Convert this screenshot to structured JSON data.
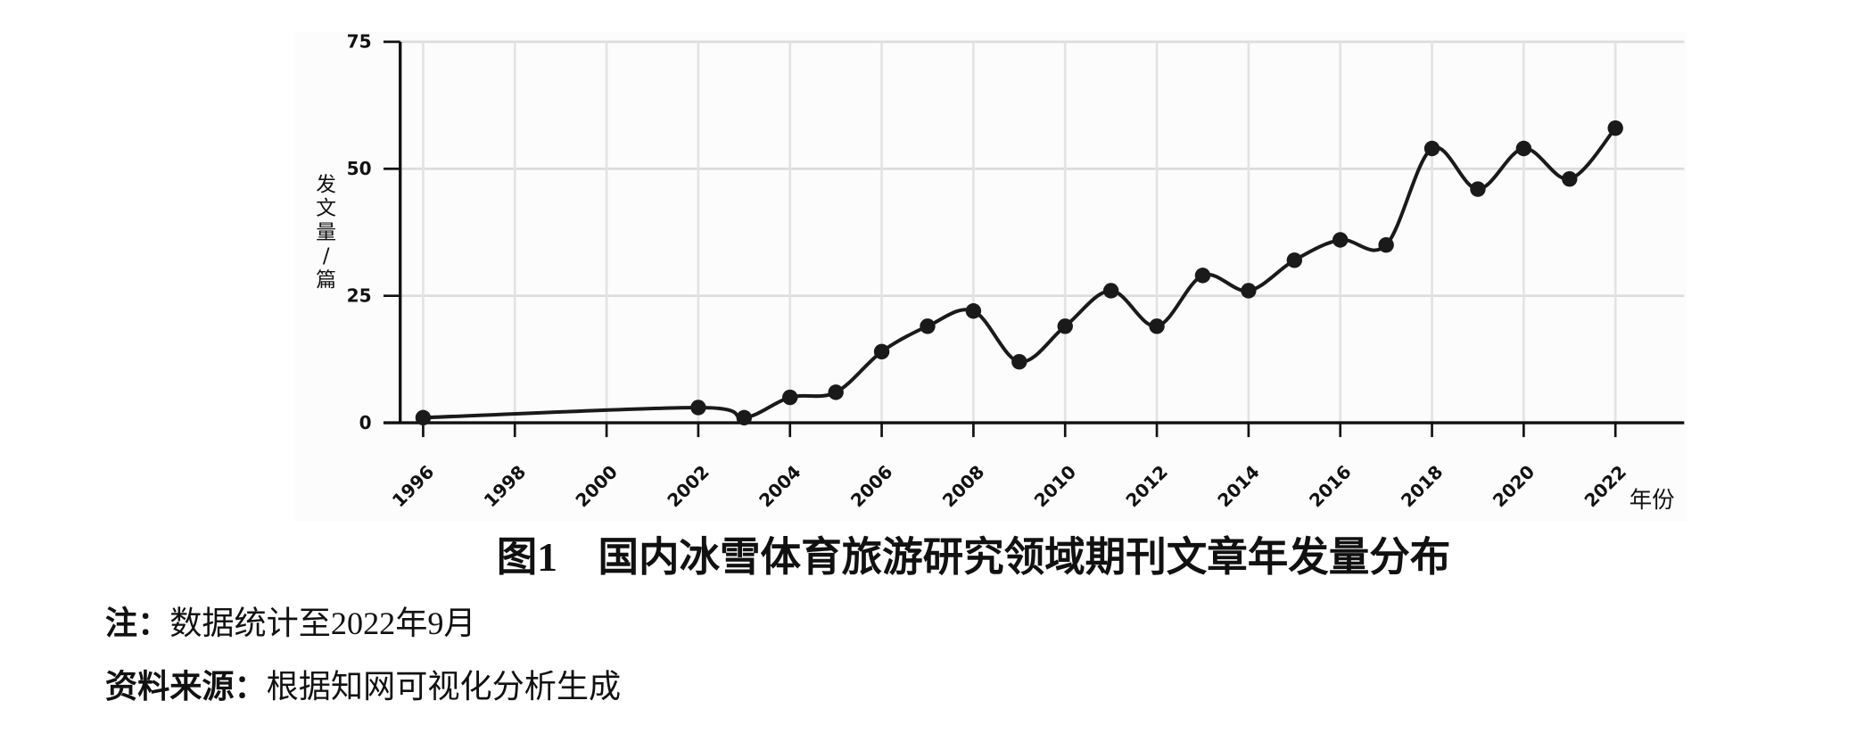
{
  "chart_data": {
    "type": "line",
    "title": "图1　国内冰雪体育旅游研究领域期刊文章年发量分布",
    "y_label": "发文量/篇",
    "x_label": "年份",
    "x": [
      1996,
      2002,
      2003,
      2004,
      2005,
      2006,
      2007,
      2008,
      2009,
      2010,
      2011,
      2012,
      2013,
      2014,
      2015,
      2016,
      2017,
      2018,
      2019,
      2020,
      2021,
      2022
    ],
    "values": [
      1,
      3,
      1,
      5,
      6,
      14,
      19,
      22,
      12,
      19,
      26,
      19,
      29,
      26,
      32,
      36,
      35,
      54,
      46,
      54,
      48,
      58
    ],
    "color": "#1a1a1a",
    "xlim": [
      1995.5,
      2023.5
    ],
    "xticks": [
      1996,
      1998,
      2000,
      2002,
      2004,
      2006,
      2008,
      2010,
      2012,
      2014,
      2016,
      2018,
      2020,
      2022
    ],
    "ylim": [
      0,
      75
    ],
    "yticks": [
      0,
      25,
      50,
      75
    ],
    "grid": true
  },
  "notes": {
    "note_label": "注：",
    "note_text": "数据统计至2022年9月",
    "source_label": "资料来源：",
    "source_text": "根据知网可视化分析生成"
  }
}
